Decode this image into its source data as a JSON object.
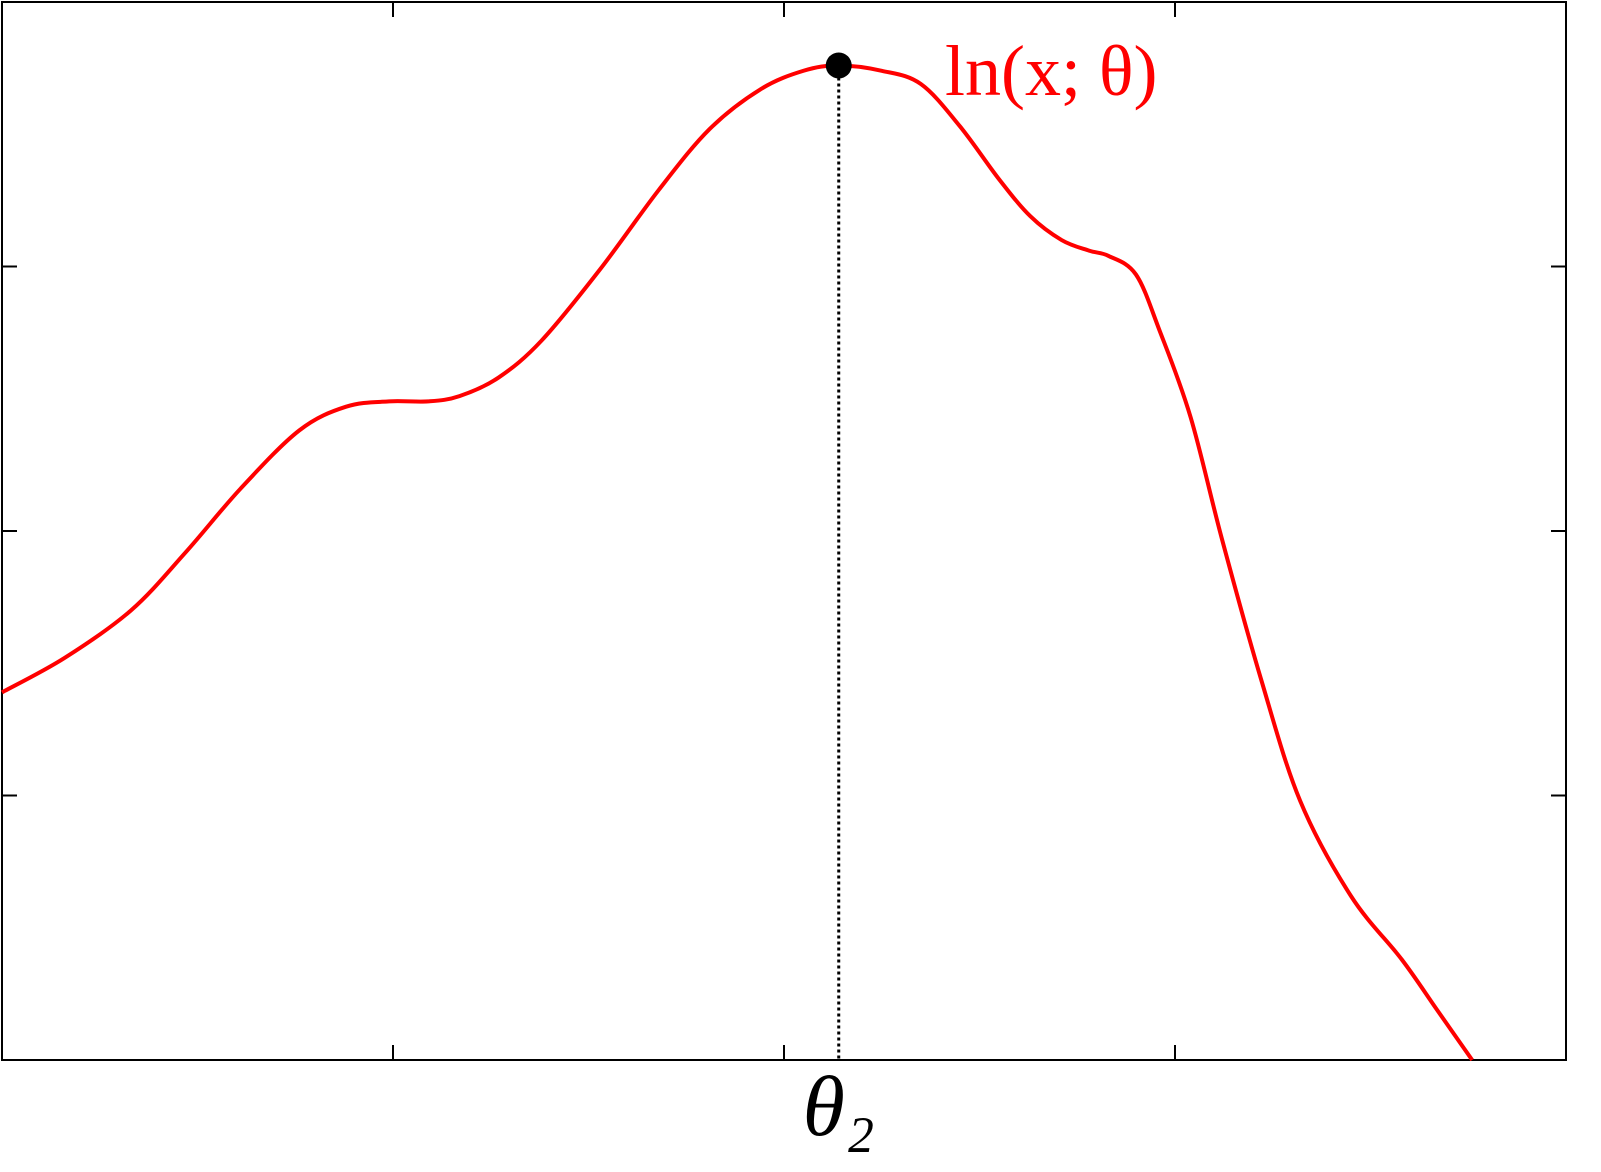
{
  "chart_data": {
    "type": "line",
    "x": [
      0,
      0.16,
      0.33,
      0.47,
      0.61,
      0.76,
      0.88,
      0.99,
      1.09,
      1.17,
      1.27,
      1.38,
      1.53,
      1.68,
      1.81,
      1.94,
      2.05,
      2.14,
      2.25,
      2.35,
      2.45,
      2.55,
      2.63,
      2.71,
      2.78,
      2.83,
      2.9,
      2.96,
      3.04,
      3.12,
      3.22,
      3.32,
      3.45,
      3.58,
      3.67,
      3.76
    ],
    "series": [
      {
        "name": "ln(x; θ)",
        "color": "#ff0000",
        "values": [
          1.39,
          1.52,
          1.7,
          1.92,
          2.16,
          2.38,
          2.47,
          2.49,
          2.49,
          2.51,
          2.58,
          2.72,
          2.99,
          3.29,
          3.52,
          3.67,
          3.74,
          3.76,
          3.74,
          3.69,
          3.53,
          3.33,
          3.19,
          3.1,
          3.06,
          3.04,
          2.97,
          2.76,
          2.43,
          1.97,
          1.44,
          0.98,
          0.62,
          0.38,
          0.19,
          0.0
        ]
      }
    ],
    "xlim": [
      0,
      4
    ],
    "ylim": [
      0,
      4
    ],
    "xticks": [
      1,
      2,
      3
    ],
    "yticks": [
      1,
      2,
      3
    ],
    "tick_labels": false,
    "marker": {
      "x": 2.14,
      "y": 3.76,
      "color": "#000000"
    },
    "x_label": "θ₂"
  }
}
